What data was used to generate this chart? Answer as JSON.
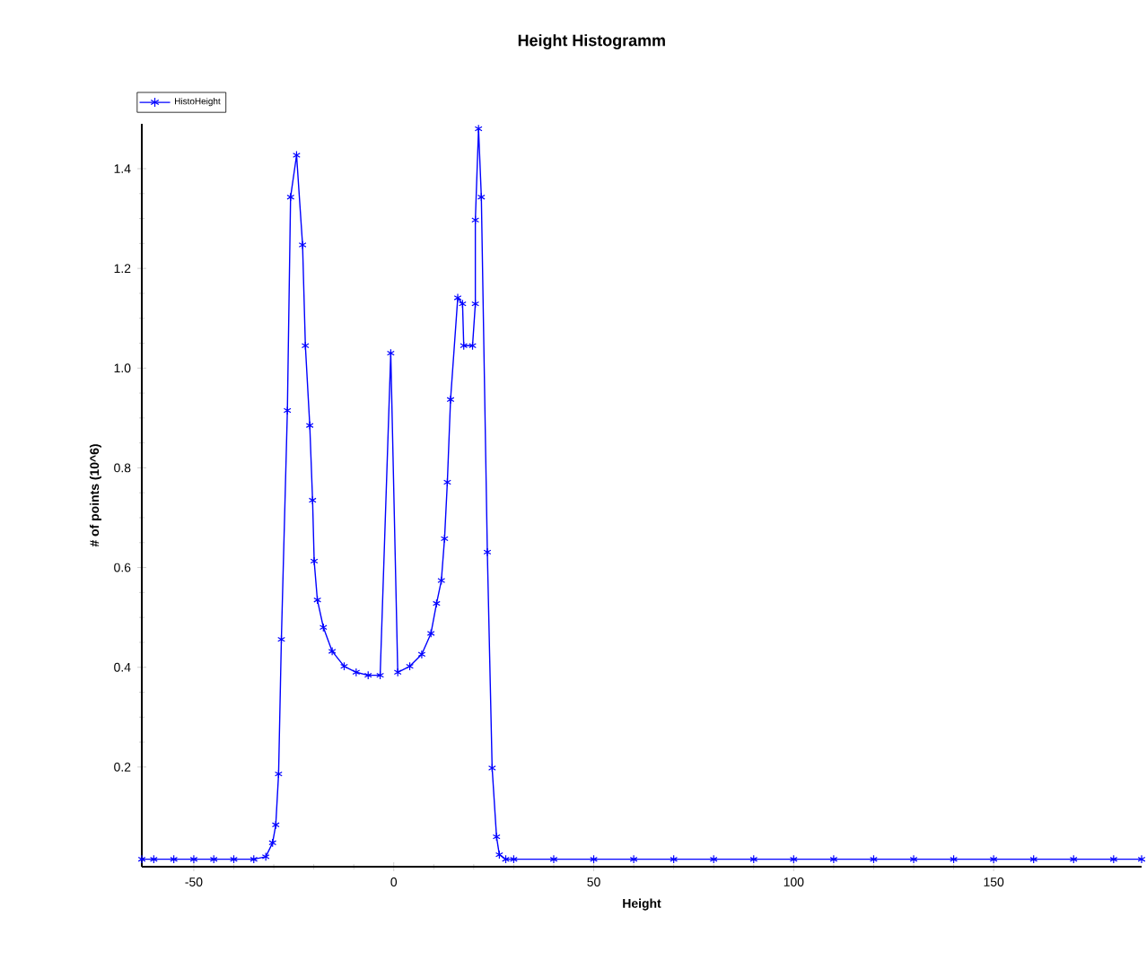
{
  "chart_data": {
    "type": "line",
    "title": "Height Histogramm",
    "xlabel": "Height",
    "ylabel": "# of points (10^6)",
    "series": [
      {
        "name": "HistoHeight",
        "color": "#0000ff",
        "x": [
          -63,
          -60,
          -55,
          -50,
          -45,
          -40,
          -35,
          -32,
          -30.3,
          -29.5,
          -28.8,
          -28.1,
          -26.6,
          -25.8,
          -24.3,
          -22.8,
          -22.1,
          -21.0,
          -20.3,
          -19.9,
          -19.1,
          -17.6,
          -15.4,
          -12.4,
          -9.4,
          -6.4,
          -3.4,
          -0.75,
          1.0,
          4.0,
          7.0,
          9.3,
          10.7,
          11.9,
          12.7,
          13.4,
          14.2,
          16.0,
          17.2,
          17.5,
          19.7,
          20.4,
          20.4,
          21.2,
          21.9,
          23.4,
          24.6,
          25.7,
          26.4,
          28,
          30,
          40,
          50,
          60,
          70,
          80,
          90,
          100,
          110,
          120,
          130,
          140,
          150,
          160,
          170,
          180,
          187
        ],
        "values": [
          0.015,
          0.015,
          0.015,
          0.015,
          0.015,
          0.015,
          0.015,
          0.02,
          0.048,
          0.084,
          0.186,
          0.456,
          0.915,
          1.343,
          1.427,
          1.247,
          1.045,
          0.885,
          0.735,
          0.613,
          0.535,
          0.48,
          0.432,
          0.402,
          0.39,
          0.384,
          0.384,
          1.03,
          0.39,
          0.402,
          0.426,
          0.468,
          0.528,
          0.574,
          0.658,
          0.771,
          0.937,
          1.141,
          1.129,
          1.045,
          1.045,
          1.129,
          1.297,
          1.48,
          1.343,
          0.631,
          0.198,
          0.06,
          0.024,
          0.015,
          0.015,
          0.015,
          0.015,
          0.015,
          0.015,
          0.015,
          0.015,
          0.015,
          0.015,
          0.015,
          0.015,
          0.015,
          0.015,
          0.015,
          0.015,
          0.015,
          0.015
        ]
      }
    ],
    "xlim": [
      -63,
      187
    ],
    "ylim": [
      0,
      1.49
    ],
    "xticks": [
      -50,
      0,
      50,
      100,
      150
    ],
    "yticks": [
      0.2,
      0.4,
      0.6,
      0.8,
      {
        "value": 1.0,
        "label": "1.0"
      },
      1.2,
      1.4
    ],
    "legend": "top left",
    "marker": "cross",
    "line_style": "solid",
    "grid": false
  }
}
